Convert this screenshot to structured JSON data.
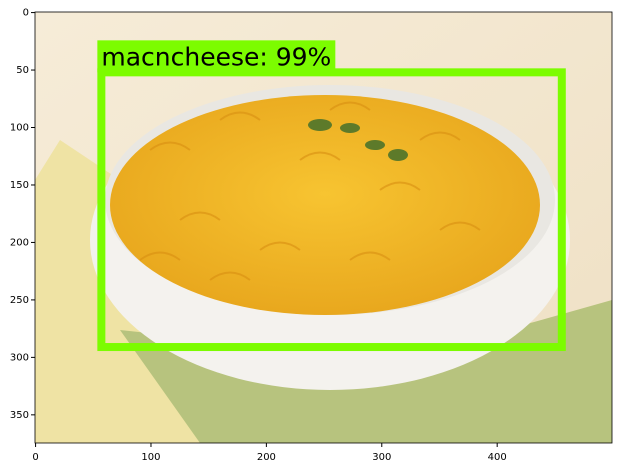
{
  "chart_data": {
    "type": "image",
    "xlim": [
      -0.5,
      499.5
    ],
    "ylim": [
      374.5,
      -0.5
    ],
    "xticks": [
      0,
      100,
      200,
      300,
      400
    ],
    "yticks": [
      0,
      50,
      100,
      150,
      200,
      250,
      300,
      350
    ],
    "box": {
      "label": "macncheese: 99%",
      "color": "#7cfc00",
      "xmin": 57,
      "ymin": 52,
      "xmax": 456,
      "ymax": 291
    }
  }
}
